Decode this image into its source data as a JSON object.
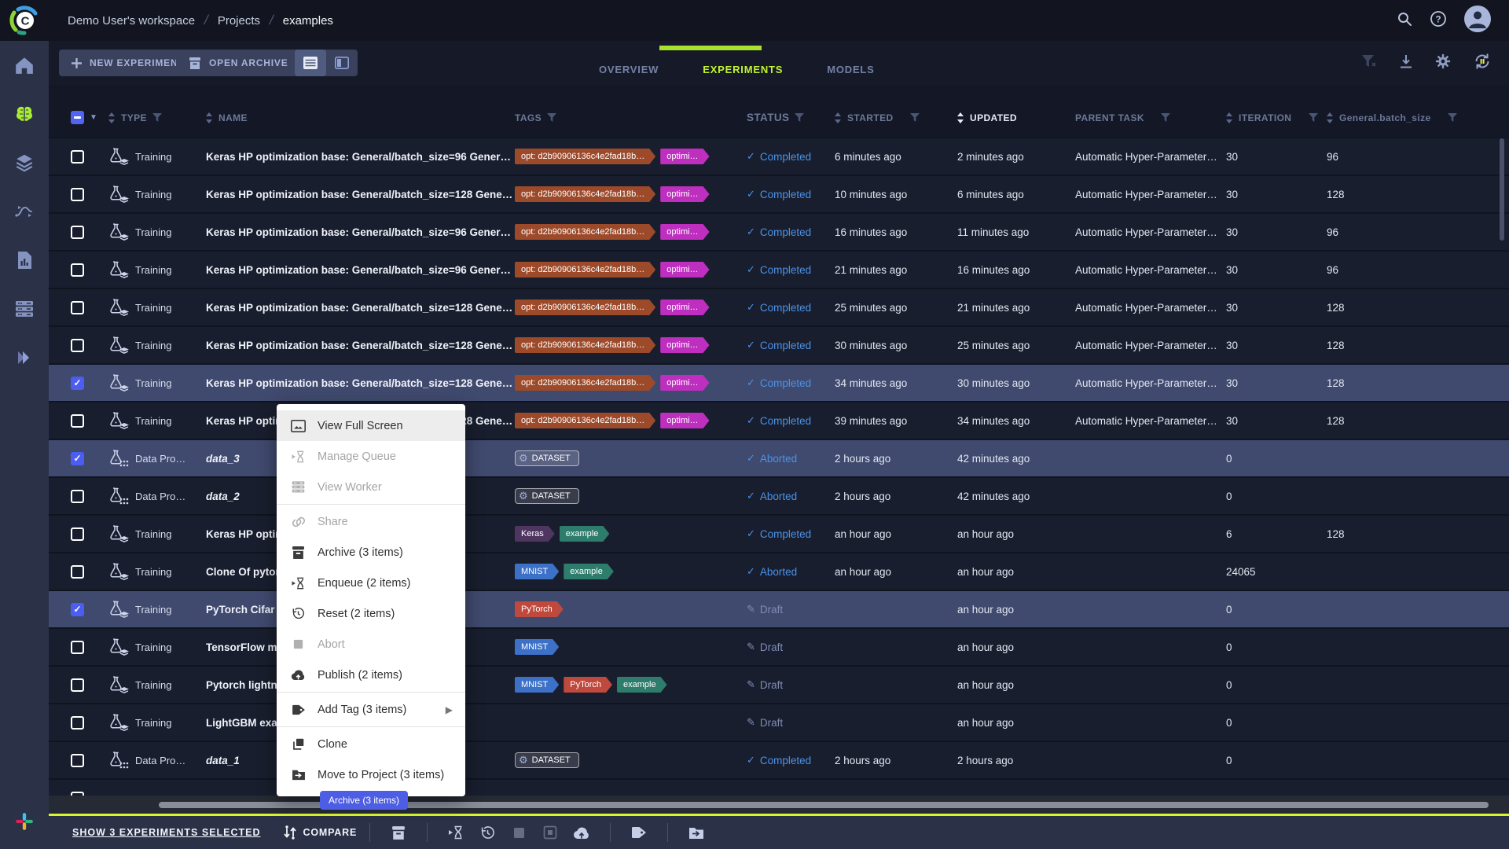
{
  "topbar": {
    "breadcrumbs": [
      "Demo User's workspace",
      "Projects",
      "examples"
    ]
  },
  "sidebar": {
    "icons": [
      "home",
      "projects",
      "datasets",
      "pipelines",
      "reports",
      "workers-queues",
      "applications",
      "slack"
    ]
  },
  "toolbar": {
    "new_experiment_label": "NEW EXPERIMENT",
    "open_archive_label": "OPEN ARCHIVE",
    "tabs": [
      {
        "label": "OVERVIEW",
        "active": false
      },
      {
        "label": "EXPERIMENTS",
        "active": true
      },
      {
        "label": "MODELS",
        "active": false
      }
    ]
  },
  "colors": {
    "accent_green": "#c3f32e",
    "selection_blue": "#404a6e",
    "checkbox_blue": "#4c5df2",
    "status_blue": "#4a92e8",
    "tooltip_bg": "#4d5de4",
    "yellow_line": "#d8f62e"
  },
  "table": {
    "headers": {
      "type": "TYPE",
      "name": "NAME",
      "tags": "TAGS",
      "status": "STATUS",
      "started": "STARTED",
      "updated": "UPDATED",
      "parent": "PARENT TASK",
      "iteration": "ITERATION",
      "batch": "General.batch_size"
    },
    "sorted_by": "UPDATED",
    "rows": [
      {
        "checked": false,
        "kind": "training",
        "type_label": "Training",
        "name": "Keras HP optimization base: General/batch_size=96 Gener…",
        "tags": [
          {
            "label": "opt: d2b90906136c4e2fad18b…",
            "color": "#9d4a2a"
          },
          {
            "label": "optimi…",
            "color": "#bf2fbf"
          }
        ],
        "status_icon": "✓",
        "status": "Completed",
        "status_kind": "completed",
        "started": "6 minutes ago",
        "updated": "2 minutes ago",
        "parent": "Automatic Hyper-Parameter…",
        "iteration": "30",
        "batch": "96"
      },
      {
        "checked": false,
        "kind": "training",
        "type_label": "Training",
        "name": "Keras HP optimization base: General/batch_size=128 Gene…",
        "tags": [
          {
            "label": "opt: d2b90906136c4e2fad18b…",
            "color": "#9d4a2a"
          },
          {
            "label": "optimi…",
            "color": "#bf2fbf"
          }
        ],
        "status_icon": "✓",
        "status": "Completed",
        "status_kind": "completed",
        "started": "10 minutes ago",
        "updated": "6 minutes ago",
        "parent": "Automatic Hyper-Parameter…",
        "iteration": "30",
        "batch": "128"
      },
      {
        "checked": false,
        "kind": "training",
        "type_label": "Training",
        "name": "Keras HP optimization base: General/batch_size=96 Gener…",
        "tags": [
          {
            "label": "opt: d2b90906136c4e2fad18b…",
            "color": "#9d4a2a"
          },
          {
            "label": "optimi…",
            "color": "#bf2fbf"
          }
        ],
        "status_icon": "✓",
        "status": "Completed",
        "status_kind": "completed",
        "started": "16 minutes ago",
        "updated": "11 minutes ago",
        "parent": "Automatic Hyper-Parameter…",
        "iteration": "30",
        "batch": "96"
      },
      {
        "checked": false,
        "kind": "training",
        "type_label": "Training",
        "name": "Keras HP optimization base: General/batch_size=96 Gener…",
        "tags": [
          {
            "label": "opt: d2b90906136c4e2fad18b…",
            "color": "#9d4a2a"
          },
          {
            "label": "optimi…",
            "color": "#bf2fbf"
          }
        ],
        "status_icon": "✓",
        "status": "Completed",
        "status_kind": "completed",
        "started": "21 minutes ago",
        "updated": "16 minutes ago",
        "parent": "Automatic Hyper-Parameter…",
        "iteration": "30",
        "batch": "96"
      },
      {
        "checked": false,
        "kind": "training",
        "type_label": "Training",
        "name": "Keras HP optimization base: General/batch_size=128 Gene…",
        "tags": [
          {
            "label": "opt: d2b90906136c4e2fad18b…",
            "color": "#9d4a2a"
          },
          {
            "label": "optimi…",
            "color": "#bf2fbf"
          }
        ],
        "status_icon": "✓",
        "status": "Completed",
        "status_kind": "completed",
        "started": "25 minutes ago",
        "updated": "21 minutes ago",
        "parent": "Automatic Hyper-Parameter…",
        "iteration": "30",
        "batch": "128"
      },
      {
        "checked": false,
        "kind": "training",
        "type_label": "Training",
        "name": "Keras HP optimization base: General/batch_size=128 Gene…",
        "tags": [
          {
            "label": "opt: d2b90906136c4e2fad18b…",
            "color": "#9d4a2a"
          },
          {
            "label": "optimi…",
            "color": "#bf2fbf"
          }
        ],
        "status_icon": "✓",
        "status": "Completed",
        "status_kind": "completed",
        "started": "30 minutes ago",
        "updated": "25 minutes ago",
        "parent": "Automatic Hyper-Parameter…",
        "iteration": "30",
        "batch": "128"
      },
      {
        "checked": true,
        "kind": "training",
        "type_label": "Training",
        "name": "Keras HP optimization base: General/batch_size=128 Gene…",
        "tags": [
          {
            "label": "opt: d2b90906136c4e2fad18b…",
            "color": "#9d4a2a"
          },
          {
            "label": "optimi…",
            "color": "#bf2fbf"
          }
        ],
        "status_icon": "✓",
        "status": "Completed",
        "status_kind": "completed",
        "started": "34 minutes ago",
        "updated": "30 minutes ago",
        "parent": "Automatic Hyper-Parameter…",
        "iteration": "30",
        "batch": "128"
      },
      {
        "checked": false,
        "kind": "training",
        "type_label": "Training",
        "name": "Keras HP optimization base: General/batch_size=128 Gene…",
        "tags": [
          {
            "label": "opt: d2b90906136c4e2fad18b…",
            "color": "#9d4a2a"
          },
          {
            "label": "optimi…",
            "color": "#bf2fbf"
          }
        ],
        "status_icon": "✓",
        "status": "Completed",
        "status_kind": "completed",
        "started": "39 minutes ago",
        "updated": "34 minutes ago",
        "parent": "Automatic Hyper-Parameter…",
        "iteration": "30",
        "batch": "128"
      },
      {
        "checked": true,
        "kind": "data",
        "type_label": "Data Pro…",
        "name": "data_3",
        "italic": true,
        "tags": [
          {
            "label": "DATASET",
            "kind": "dataset"
          }
        ],
        "status_icon": "✓",
        "status": "Aborted",
        "status_kind": "aborted",
        "started": "2 hours ago",
        "updated": "42 minutes ago",
        "parent": "",
        "iteration": "0",
        "batch": ""
      },
      {
        "checked": false,
        "kind": "data",
        "type_label": "Data Pro…",
        "name": "data_2",
        "italic": true,
        "tags": [
          {
            "label": "DATASET",
            "kind": "dataset"
          }
        ],
        "status_icon": "✓",
        "status": "Aborted",
        "status_kind": "aborted",
        "started": "2 hours ago",
        "updated": "42 minutes ago",
        "parent": "",
        "iteration": "0",
        "batch": ""
      },
      {
        "checked": false,
        "kind": "training",
        "type_label": "Training",
        "name": "Keras HP optimi",
        "tags": [
          {
            "label": "Keras",
            "color": "#4f3660"
          },
          {
            "label": "example",
            "color": "#2e7d6c"
          }
        ],
        "status_icon": "✓",
        "status": "Completed",
        "status_kind": "completed",
        "started": "an hour ago",
        "updated": "an hour ago",
        "parent": "",
        "iteration": "6",
        "batch": "128"
      },
      {
        "checked": false,
        "kind": "training",
        "type_label": "Training",
        "name": "Clone Of pytorch",
        "tags": [
          {
            "label": "MNIST",
            "color": "#3d71c8"
          },
          {
            "label": "example",
            "color": "#2e7d6c"
          }
        ],
        "status_icon": "✓",
        "status": "Aborted",
        "status_kind": "aborted",
        "started": "an hour ago",
        "updated": "an hour ago",
        "parent": "",
        "iteration": "24065",
        "batch": ""
      },
      {
        "checked": true,
        "kind": "training",
        "type_label": "Training",
        "name": "PyTorch Cifar",
        "tags": [
          {
            "label": "PyTorch",
            "color": "#c0493d"
          }
        ],
        "status_icon": "✎",
        "status": "Draft",
        "status_kind": "draft",
        "started": "",
        "updated": "an hour ago",
        "parent": "",
        "iteration": "0",
        "batch": ""
      },
      {
        "checked": false,
        "kind": "training",
        "type_label": "Training",
        "name": "TensorFlow mni",
        "tags": [
          {
            "label": "MNIST",
            "color": "#3d71c8"
          }
        ],
        "status_icon": "✎",
        "status": "Draft",
        "status_kind": "draft",
        "started": "",
        "updated": "an hour ago",
        "parent": "",
        "iteration": "0",
        "batch": ""
      },
      {
        "checked": false,
        "kind": "training",
        "type_label": "Training",
        "name": "Pytorch lightnin",
        "tags": [
          {
            "label": "MNIST",
            "color": "#3d71c8"
          },
          {
            "label": "PyTorch",
            "color": "#c0493d"
          },
          {
            "label": "example",
            "color": "#2e7d6c"
          }
        ],
        "status_icon": "✎",
        "status": "Draft",
        "status_kind": "draft",
        "started": "",
        "updated": "an hour ago",
        "parent": "",
        "iteration": "0",
        "batch": ""
      },
      {
        "checked": false,
        "kind": "training",
        "type_label": "Training",
        "name": "LightGBM exam",
        "tags": [],
        "status_icon": "✎",
        "status": "Draft",
        "status_kind": "draft",
        "started": "",
        "updated": "an hour ago",
        "parent": "",
        "iteration": "0",
        "batch": ""
      },
      {
        "checked": false,
        "kind": "data",
        "type_label": "Data Pro…",
        "name": "data_1",
        "italic": true,
        "tags": [
          {
            "label": "DATASET",
            "kind": "dataset"
          }
        ],
        "status_icon": "✓",
        "status": "Completed",
        "status_kind": "completed",
        "started": "2 hours ago",
        "updated": "2 hours ago",
        "parent": "",
        "iteration": "0",
        "batch": ""
      },
      {
        "checked": false,
        "kind": "training",
        "type_label": "",
        "name": "",
        "tags": [],
        "status_icon": "",
        "status": "",
        "status_kind": "none",
        "started": "",
        "updated": "",
        "parent": "",
        "iteration": "",
        "batch": ""
      }
    ]
  },
  "context_menu": {
    "items": [
      {
        "label": "View Full Screen",
        "enabled": true,
        "highlighted": true
      },
      {
        "label": "Manage Queue",
        "enabled": false
      },
      {
        "label": "View Worker",
        "enabled": false
      },
      {
        "label": "Share",
        "enabled": false
      },
      {
        "label": "Archive (3 items)",
        "enabled": true
      },
      {
        "label": "Enqueue (2 items)",
        "enabled": true
      },
      {
        "label": "Reset (2 items)",
        "enabled": true
      },
      {
        "label": "Abort",
        "enabled": false
      },
      {
        "label": "Publish (2 items)",
        "enabled": true
      },
      {
        "label": "Add Tag (3 items)",
        "enabled": true,
        "has_submenu": true
      },
      {
        "label": "Clone",
        "enabled": true
      },
      {
        "label": "Move to Project (3 items)",
        "enabled": true
      }
    ]
  },
  "tooltip": {
    "text": "Archive (3 items)"
  },
  "footer": {
    "show_selected_label": "SHOW 3 EXPERIMENTS SELECTED",
    "compare_label": "COMPARE"
  }
}
